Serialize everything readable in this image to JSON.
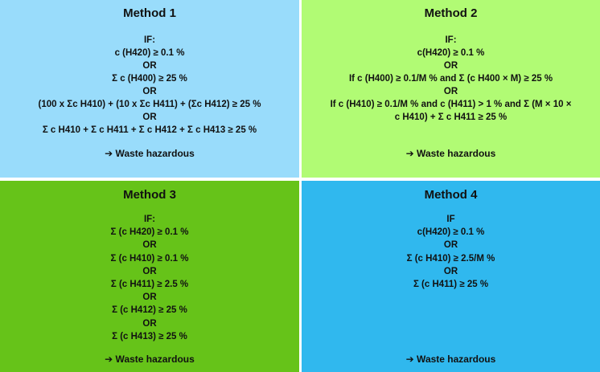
{
  "colors": {
    "method1_bg": "#99dcfb",
    "method2_bg": "#b1fb74",
    "method3_bg": "#66c319",
    "method4_bg": "#30b8ee"
  },
  "methods": [
    {
      "title": "Method 1",
      "lines": [
        "IF:",
        "c (H420) ≥ 0.1 %",
        "OR",
        "Σ c (H400) ≥ 25 %",
        "OR",
        "(100 x Σc H410) + (10 x Σc H411) + (Σc H412) ≥ 25 %",
        "OR",
        "Σ c H410 + Σ c H411 + Σ c H412 + Σ c H413 ≥ 25 %"
      ],
      "conclusion": "➔ Waste hazardous"
    },
    {
      "title": "Method 2",
      "lines": [
        "IF:",
        "c(H420) ≥ 0.1 %",
        "OR",
        "If c (H400) ≥ 0.1/M % and Σ (c H400 × M) ≥ 25 %",
        "OR",
        "If c (H410) ≥ 0.1/M % and c (H411) > 1 % and Σ (M × 10 ×",
        "c H410) + Σ c H411 ≥ 25 %"
      ],
      "conclusion": "➔ Waste hazardous"
    },
    {
      "title": "Method 3",
      "lines": [
        "IF:",
        "Σ (c H420) ≥ 0.1 %",
        "OR",
        "Σ (c H410) ≥ 0.1 %",
        "OR",
        "Σ (c H411)  ≥ 2.5 %",
        "OR",
        "Σ (c H412) ≥ 25 %",
        "OR",
        "Σ (c H413) ≥ 25 %"
      ],
      "conclusion": "➔ Waste hazardous"
    },
    {
      "title": "Method 4",
      "lines": [
        "IF",
        "c(H420) ≥ 0.1 %",
        "OR",
        "Σ (c H410) ≥ 2.5/M %",
        "OR",
        "Σ (c H411) ≥ 25 %"
      ],
      "conclusion": "➔ Waste hazardous"
    }
  ]
}
